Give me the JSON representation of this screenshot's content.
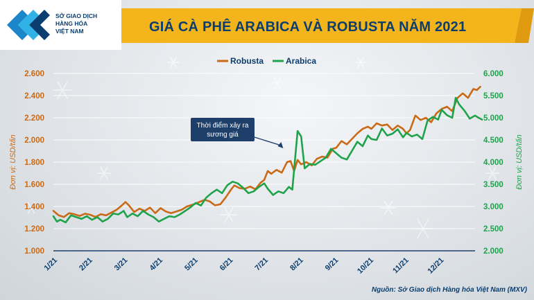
{
  "header": {
    "logo_lines": [
      "SỞ GIAO DỊCH",
      "HÀNG HÓA",
      "VIỆT NAM"
    ],
    "title": "GIÁ CÀ PHÊ ARABICA VÀ ROBUSTA NĂM 2021"
  },
  "colors": {
    "robusta": "#c96a17",
    "arabica": "#1ea34b",
    "baseline": "#1f3f6b",
    "title": "#0b3d6e",
    "banner": "#f3b51b"
  },
  "source": "Nguồn: Sở Giao dịch Hàng hóa Việt Nam (MXV)",
  "chart_data": {
    "type": "line",
    "title": "GIÁ CÀ PHÊ ARABICA VÀ ROBUSTA NĂM 2021",
    "legend_position": "top-center",
    "grid": true,
    "x_ticks": [
      "1/21",
      "2/21",
      "3/21",
      "4/21",
      "5/21",
      "6/21",
      "7/21",
      "8/21",
      "9/21",
      "10/21",
      "11/21",
      "12/21"
    ],
    "x_range": [
      1,
      13
    ],
    "y_left": {
      "label": "Đơn vị: USD/tấn",
      "ticks": [
        "1.000",
        "1.200",
        "1.400",
        "1.600",
        "1.800",
        "2.000",
        "2.200",
        "2.400",
        "2.600"
      ],
      "range": [
        1000,
        2600
      ]
    },
    "y_right": {
      "label": "Đơn vị: USD/tấn",
      "ticks": [
        "2.000",
        "2.500",
        "3.000",
        "3.500",
        "4.000",
        "4.500",
        "5.000",
        "5.500",
        "6.000"
      ],
      "range": [
        2000,
        6000
      ]
    },
    "annotation": {
      "text_lines": [
        "Thời điểm xảy ra",
        "sương giá"
      ],
      "x": 7.6,
      "y": 2000
    },
    "series": [
      {
        "name": "Robusta",
        "axis": "left",
        "points": [
          [
            1.0,
            1360
          ],
          [
            1.15,
            1320
          ],
          [
            1.3,
            1305
          ],
          [
            1.45,
            1340
          ],
          [
            1.6,
            1330
          ],
          [
            1.75,
            1315
          ],
          [
            1.9,
            1335
          ],
          [
            2.05,
            1325
          ],
          [
            2.2,
            1305
          ],
          [
            2.35,
            1330
          ],
          [
            2.5,
            1320
          ],
          [
            2.65,
            1345
          ],
          [
            2.8,
            1370
          ],
          [
            2.95,
            1410
          ],
          [
            3.05,
            1440
          ],
          [
            3.15,
            1410
          ],
          [
            3.3,
            1350
          ],
          [
            3.45,
            1380
          ],
          [
            3.6,
            1360
          ],
          [
            3.75,
            1390
          ],
          [
            3.9,
            1340
          ],
          [
            4.05,
            1385
          ],
          [
            4.2,
            1355
          ],
          [
            4.35,
            1340
          ],
          [
            4.5,
            1355
          ],
          [
            4.65,
            1370
          ],
          [
            4.8,
            1400
          ],
          [
            5.0,
            1420
          ],
          [
            5.15,
            1440
          ],
          [
            5.3,
            1460
          ],
          [
            5.45,
            1445
          ],
          [
            5.6,
            1410
          ],
          [
            5.75,
            1420
          ],
          [
            5.9,
            1480
          ],
          [
            6.05,
            1550
          ],
          [
            6.15,
            1590
          ],
          [
            6.3,
            1565
          ],
          [
            6.45,
            1560
          ],
          [
            6.6,
            1580
          ],
          [
            6.75,
            1555
          ],
          [
            6.9,
            1615
          ],
          [
            7.0,
            1640
          ],
          [
            7.1,
            1720
          ],
          [
            7.2,
            1695
          ],
          [
            7.35,
            1730
          ],
          [
            7.5,
            1705
          ],
          [
            7.65,
            1800
          ],
          [
            7.75,
            1810
          ],
          [
            7.85,
            1720
          ],
          [
            7.95,
            1820
          ],
          [
            8.05,
            1780
          ],
          [
            8.2,
            1800
          ],
          [
            8.35,
            1770
          ],
          [
            8.5,
            1830
          ],
          [
            8.65,
            1850
          ],
          [
            8.8,
            1840
          ],
          [
            8.95,
            1920
          ],
          [
            9.05,
            1930
          ],
          [
            9.2,
            1990
          ],
          [
            9.35,
            1960
          ],
          [
            9.5,
            2010
          ],
          [
            9.65,
            2060
          ],
          [
            9.8,
            2100
          ],
          [
            9.95,
            2120
          ],
          [
            10.05,
            2100
          ],
          [
            10.2,
            2150
          ],
          [
            10.35,
            2130
          ],
          [
            10.5,
            2140
          ],
          [
            10.65,
            2090
          ],
          [
            10.8,
            2130
          ],
          [
            10.95,
            2100
          ],
          [
            11.05,
            2060
          ],
          [
            11.15,
            2090
          ],
          [
            11.3,
            2220
          ],
          [
            11.45,
            2180
          ],
          [
            11.6,
            2200
          ],
          [
            11.75,
            2160
          ],
          [
            11.9,
            2240
          ],
          [
            12.05,
            2280
          ],
          [
            12.2,
            2300
          ],
          [
            12.35,
            2260
          ],
          [
            12.5,
            2380
          ],
          [
            12.65,
            2420
          ],
          [
            12.8,
            2380
          ],
          [
            12.95,
            2460
          ],
          [
            13.05,
            2450
          ],
          [
            13.15,
            2480
          ]
        ]
      },
      {
        "name": "Arabica",
        "axis": "right",
        "points": [
          [
            1.0,
            2780
          ],
          [
            1.1,
            2660
          ],
          [
            1.2,
            2700
          ],
          [
            1.35,
            2640
          ],
          [
            1.5,
            2800
          ],
          [
            1.65,
            2760
          ],
          [
            1.8,
            2720
          ],
          [
            1.95,
            2780
          ],
          [
            2.1,
            2700
          ],
          [
            2.25,
            2760
          ],
          [
            2.4,
            2660
          ],
          [
            2.55,
            2720
          ],
          [
            2.7,
            2840
          ],
          [
            2.85,
            2820
          ],
          [
            3.0,
            2900
          ],
          [
            3.1,
            2760
          ],
          [
            3.25,
            2840
          ],
          [
            3.4,
            2780
          ],
          [
            3.55,
            2900
          ],
          [
            3.7,
            2820
          ],
          [
            3.85,
            2760
          ],
          [
            4.0,
            2660
          ],
          [
            4.15,
            2720
          ],
          [
            4.3,
            2780
          ],
          [
            4.45,
            2760
          ],
          [
            4.6,
            2820
          ],
          [
            4.75,
            2900
          ],
          [
            4.9,
            2980
          ],
          [
            5.05,
            3080
          ],
          [
            5.2,
            3020
          ],
          [
            5.35,
            3200
          ],
          [
            5.5,
            3300
          ],
          [
            5.65,
            3380
          ],
          [
            5.8,
            3300
          ],
          [
            5.95,
            3480
          ],
          [
            6.1,
            3560
          ],
          [
            6.25,
            3520
          ],
          [
            6.4,
            3420
          ],
          [
            6.55,
            3300
          ],
          [
            6.7,
            3340
          ],
          [
            6.85,
            3440
          ],
          [
            7.0,
            3520
          ],
          [
            7.1,
            3400
          ],
          [
            7.25,
            3260
          ],
          [
            7.4,
            3340
          ],
          [
            7.55,
            3300
          ],
          [
            7.7,
            3440
          ],
          [
            7.8,
            3380
          ],
          [
            7.95,
            4700
          ],
          [
            8.05,
            4580
          ],
          [
            8.15,
            3860
          ],
          [
            8.3,
            3960
          ],
          [
            8.45,
            3940
          ],
          [
            8.6,
            4020
          ],
          [
            8.75,
            4100
          ],
          [
            8.9,
            4300
          ],
          [
            9.05,
            4200
          ],
          [
            9.2,
            4100
          ],
          [
            9.35,
            4060
          ],
          [
            9.5,
            4260
          ],
          [
            9.65,
            4460
          ],
          [
            9.8,
            4360
          ],
          [
            9.95,
            4600
          ],
          [
            10.05,
            4520
          ],
          [
            10.2,
            4500
          ],
          [
            10.35,
            4760
          ],
          [
            10.5,
            4600
          ],
          [
            10.65,
            4640
          ],
          [
            10.8,
            4740
          ],
          [
            10.95,
            4560
          ],
          [
            11.05,
            4660
          ],
          [
            11.2,
            4580
          ],
          [
            11.35,
            4620
          ],
          [
            11.5,
            4520
          ],
          [
            11.65,
            4940
          ],
          [
            11.8,
            5020
          ],
          [
            11.95,
            4960
          ],
          [
            12.05,
            5180
          ],
          [
            12.2,
            5060
          ],
          [
            12.35,
            5000
          ],
          [
            12.45,
            5450
          ],
          [
            12.55,
            5300
          ],
          [
            12.7,
            5160
          ],
          [
            12.85,
            4980
          ],
          [
            13.0,
            5050
          ],
          [
            13.1,
            5000
          ],
          [
            13.2,
            4960
          ]
        ]
      }
    ]
  }
}
